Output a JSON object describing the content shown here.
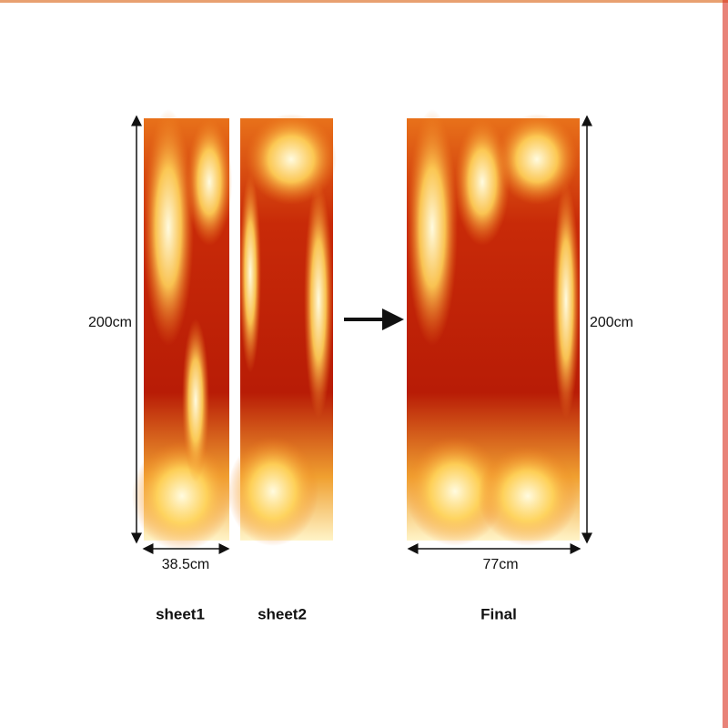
{
  "dimensions": {
    "left_height": "200cm",
    "sheet_width": "38.5cm",
    "final_height": "200cm",
    "final_width": "77cm"
  },
  "labels": {
    "sheet1": "sheet1",
    "sheet2": "sheet2",
    "final": "Final"
  }
}
